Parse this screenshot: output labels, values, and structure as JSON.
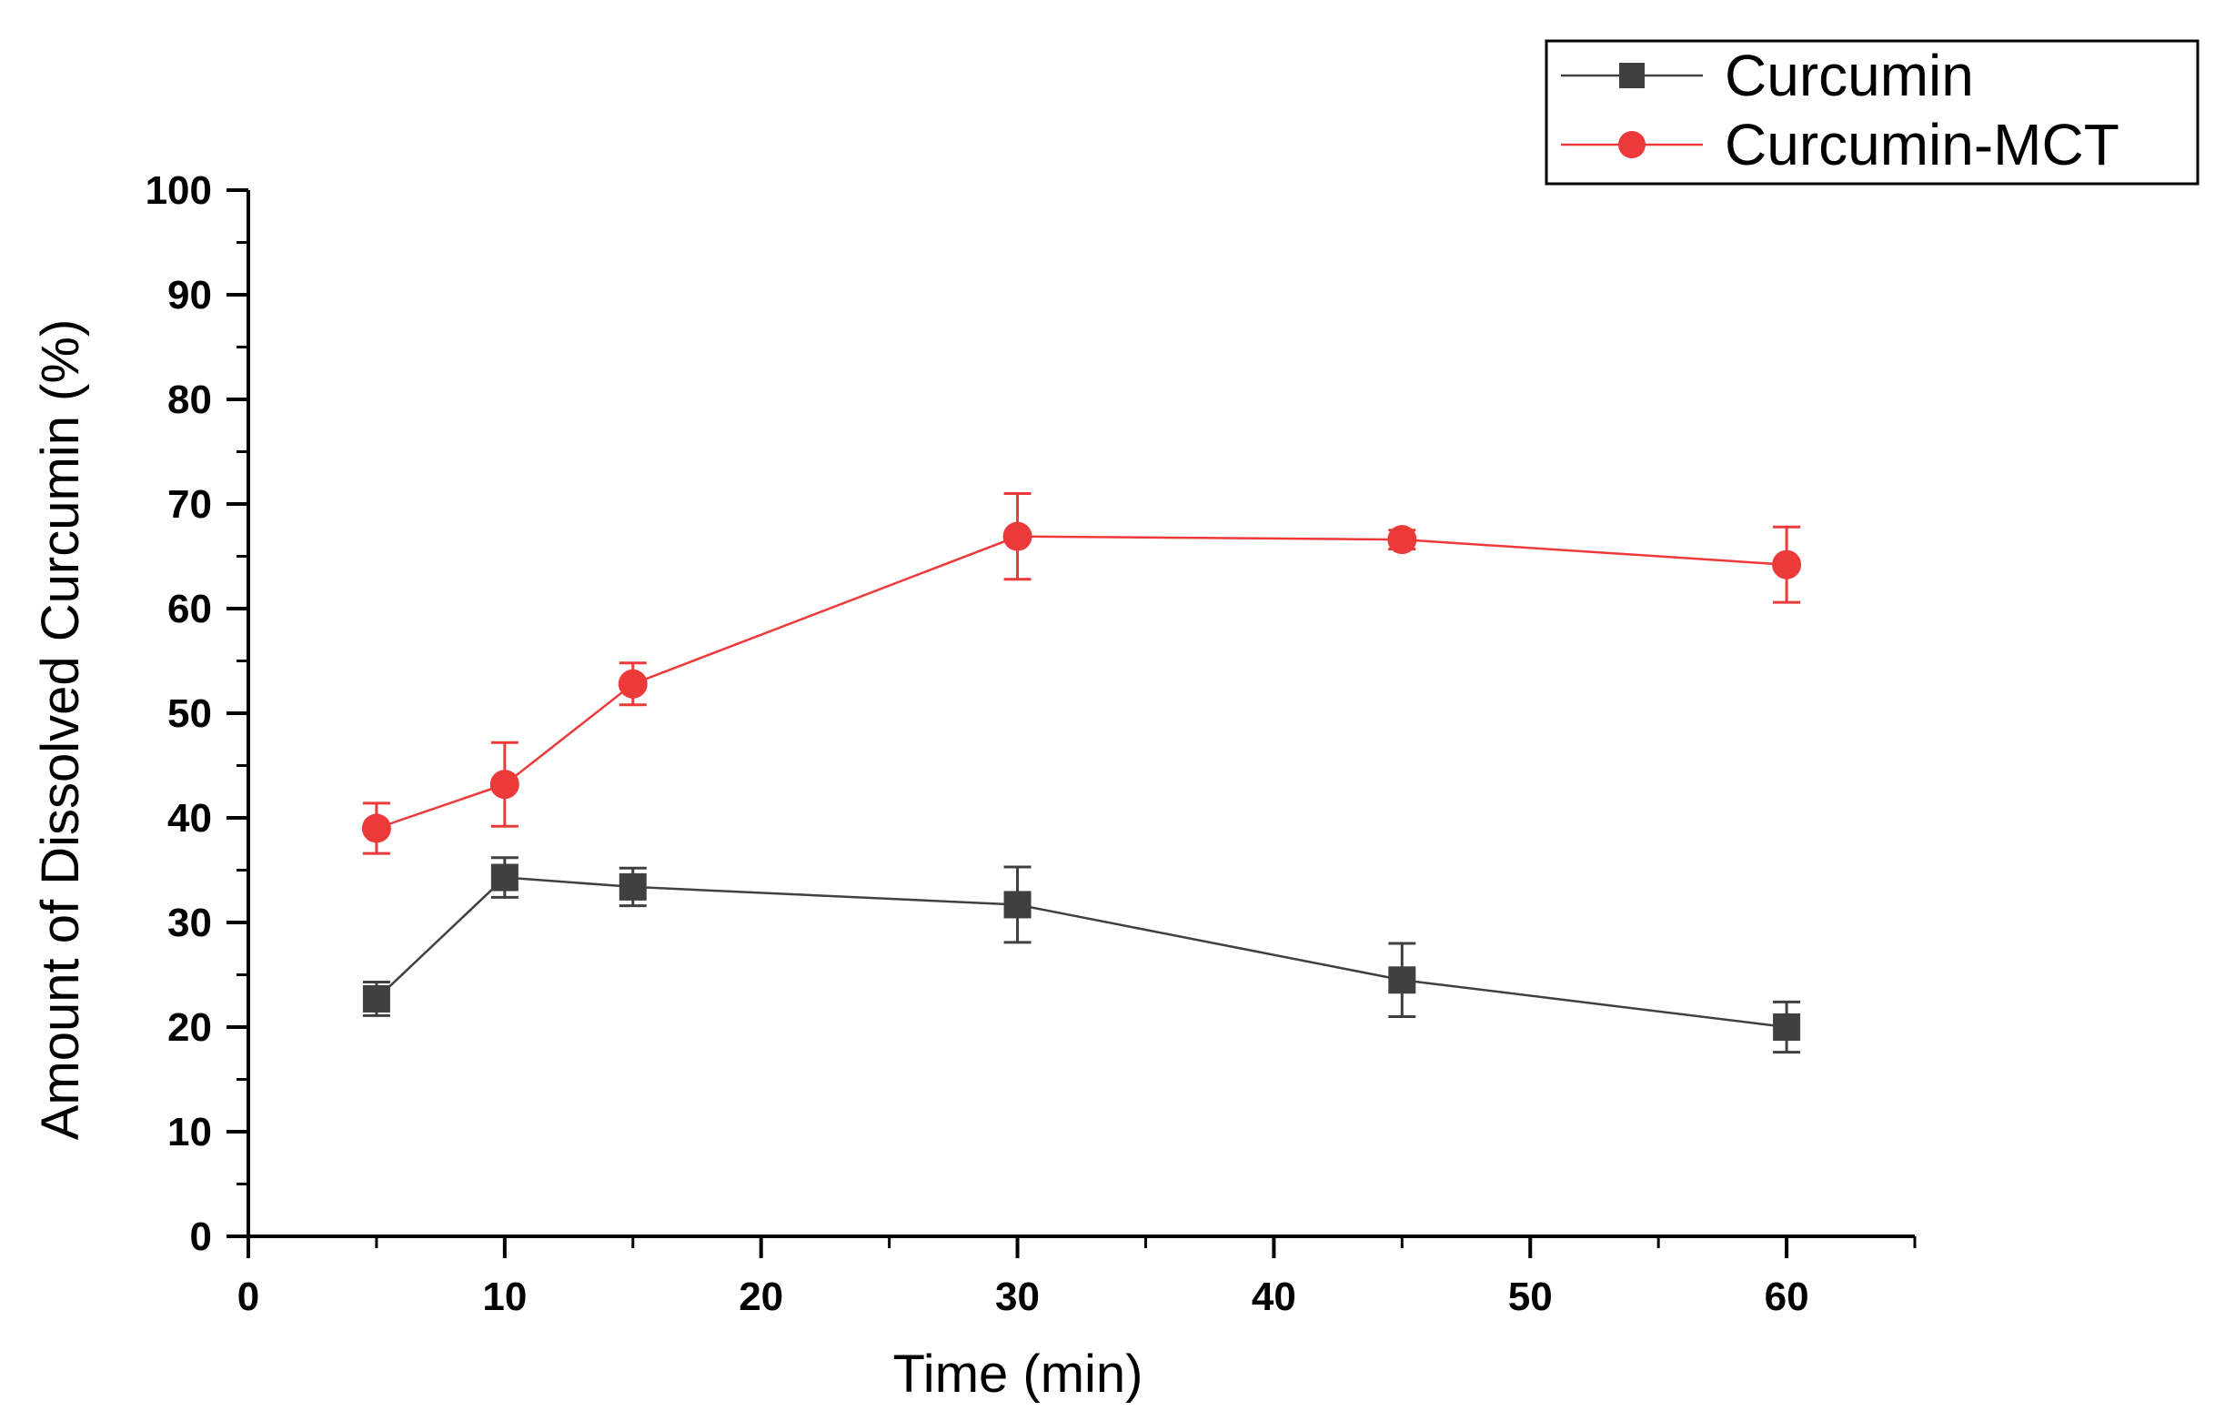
{
  "chart_data": {
    "type": "line",
    "title": "",
    "xlabel": "Time (min)",
    "ylabel": "Amount of Dissolved Curcumin (%)",
    "xlim": [
      0,
      65
    ],
    "ylim": [
      0,
      100
    ],
    "x_ticks": [
      0,
      10,
      20,
      30,
      40,
      50,
      60
    ],
    "y_ticks": [
      0,
      10,
      20,
      30,
      40,
      50,
      60,
      70,
      80,
      90,
      100
    ],
    "x_tick_labels": [
      "0",
      "10",
      "20",
      "30",
      "40",
      "50",
      "60"
    ],
    "y_tick_labels": [
      "0",
      "10",
      "20",
      "30",
      "40",
      "50",
      "60",
      "70",
      "80",
      "90",
      "100"
    ],
    "legend_position": "top-right",
    "grid": false,
    "series": [
      {
        "name": "Curcumin",
        "marker": "square",
        "color": "#404040",
        "x": [
          5,
          10,
          15,
          30,
          45,
          60
        ],
        "y": [
          22.7,
          34.3,
          33.4,
          31.7,
          24.5,
          20.0
        ],
        "error": [
          1.6,
          1.9,
          1.8,
          3.6,
          3.5,
          2.4
        ]
      },
      {
        "name": "Curcumin-MCT",
        "marker": "circle",
        "color": "#ec3a3a",
        "x": [
          5,
          10,
          15,
          30,
          45,
          60
        ],
        "y": [
          39.0,
          43.2,
          52.8,
          66.9,
          66.6,
          64.2
        ],
        "error": [
          2.4,
          4.0,
          2.0,
          4.1,
          0.9,
          3.6
        ]
      }
    ]
  }
}
